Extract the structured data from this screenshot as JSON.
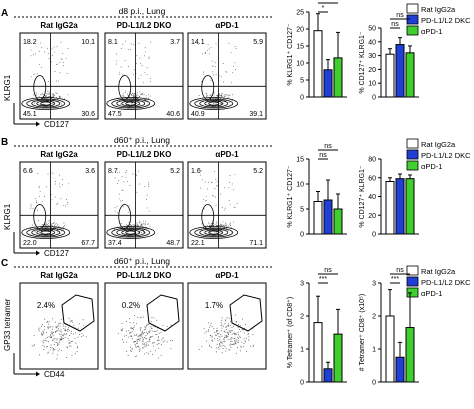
{
  "colors": {
    "rat_igg2a": "#ffffff",
    "pd_l1_l2_dko": "#1f3fd6",
    "apd1": "#3fcf2f",
    "outline": "#000000",
    "contour": "#000000",
    "dots": "#555555"
  },
  "panels": [
    {
      "letter": "A",
      "title": "d8 p.i., Lung",
      "x_label": "CD127",
      "y_label": "KLRG1",
      "plot_type": "quadrant",
      "facs": [
        {
          "name": "Rat IgG2a",
          "tl": "18.2",
          "tr": "10.1",
          "bl": "45.1",
          "br": "30.6"
        },
        {
          "name": "PD-L1/L2 DKO",
          "tl": "8.1",
          "tr": "3.7",
          "bl": "47.5",
          "br": "40.6"
        },
        {
          "name": "αPD-1",
          "tl": "14.1",
          "tr": "5.9",
          "bl": "40.9",
          "br": "39.1"
        }
      ]
    },
    {
      "letter": "B",
      "title": "d60⁺ p.i., Lung",
      "x_label": "CD127",
      "y_label": "KLRG1",
      "plot_type": "quadrant",
      "facs": [
        {
          "name": "Rat IgG2a",
          "tl": "6.6",
          "tr": "3.6",
          "bl": "22.0",
          "br": "67.7"
        },
        {
          "name": "PD-L1/L2 DKO",
          "tl": "8.7",
          "tr": "5.2",
          "bl": "37.4",
          "br": "48.7"
        },
        {
          "name": "αPD-1",
          "tl": "1.6",
          "tr": "5.2",
          "bl": "22.1",
          "br": "71.1"
        }
      ]
    },
    {
      "letter": "C",
      "title": "d60⁺ p.i., Lung",
      "x_label": "CD44",
      "y_label": "GP33 tetramer",
      "plot_type": "gate",
      "facs": [
        {
          "name": "Rat IgG2a",
          "gate": "2.4%"
        },
        {
          "name": "PD-L1/L2 DKO",
          "gate": "0.2%"
        },
        {
          "name": "αPD-1",
          "gate": "1.7%"
        }
      ]
    }
  ],
  "legend": [
    "Rat IgG2a",
    "PD-L1/L2 DKC",
    "αPD-1"
  ],
  "chart_data": [
    {
      "type": "bar",
      "panel": "A",
      "ylabel": "% KLRG1⁺ CD127⁻",
      "ylim": [
        0,
        25
      ],
      "yticks": [
        "0",
        "5",
        "10",
        "15",
        "20",
        "25"
      ],
      "categories": [
        "Rat IgG2a",
        "PD-L1/L2 DKC",
        "αPD-1"
      ],
      "values": [
        19.5,
        8.0,
        11.5
      ],
      "errors": [
        5.0,
        3.0,
        7.5
      ],
      "significance": [
        {
          "from": 0,
          "to": 1,
          "label": "*"
        },
        {
          "from": 0,
          "to": 2,
          "label": "*"
        }
      ]
    },
    {
      "type": "bar",
      "panel": "A",
      "ylabel": "% CD127⁺ KLRG1⁻",
      "ylim": [
        0,
        50
      ],
      "yticks": [
        "0",
        "10",
        "20",
        "30",
        "40",
        "50"
      ],
      "categories": [
        "Rat IgG2a",
        "PD-L1/L2 DKC",
        "αPD-1"
      ],
      "values": [
        31,
        38,
        32
      ],
      "errors": [
        4.0,
        5.0,
        5.0
      ],
      "significance": [
        {
          "from": 0,
          "to": 1,
          "label": "ns"
        },
        {
          "from": 0,
          "to": 2,
          "label": "ns"
        }
      ]
    },
    {
      "type": "bar",
      "panel": "B",
      "ylabel": "% KLRG1⁺ CD127⁻",
      "ylim": [
        0,
        15
      ],
      "yticks": [
        "0",
        "5",
        "10",
        "15"
      ],
      "categories": [
        "Rat IgG2a",
        "PD-L1/L2 DKC",
        "αPD-1"
      ],
      "values": [
        6.5,
        6.8,
        5.0
      ],
      "errors": [
        2.0,
        4.0,
        3.0
      ],
      "significance": [
        {
          "from": 0,
          "to": 1,
          "label": "ns"
        },
        {
          "from": 0,
          "to": 2,
          "label": "ns"
        }
      ]
    },
    {
      "type": "bar",
      "panel": "B",
      "ylabel": "% CD127⁺ KLRG1⁻",
      "ylim": [
        0,
        80
      ],
      "yticks": [
        "0",
        "20",
        "40",
        "60",
        "80"
      ],
      "categories": [
        "Rat IgG2a",
        "PD-L1/L2 DKC",
        "αPD-1"
      ],
      "values": [
        56,
        59,
        59
      ],
      "errors": [
        4.0,
        5.0,
        4.0
      ],
      "significance": []
    },
    {
      "type": "bar",
      "panel": "C",
      "ylabel": "% Tetramer⁺ (of CD8⁺)",
      "ylim": [
        0,
        3
      ],
      "yticks": [
        "0",
        "1",
        "2",
        "3"
      ],
      "categories": [
        "Rat IgG2a",
        "PD-L1/L2 DKC",
        "αPD-1"
      ],
      "values": [
        1.8,
        0.4,
        1.45
      ],
      "errors": [
        0.8,
        0.2,
        0.75
      ],
      "significance": [
        {
          "from": 0,
          "to": 1,
          "label": "***"
        },
        {
          "from": 0,
          "to": 2,
          "label": "ns"
        }
      ]
    },
    {
      "type": "bar",
      "panel": "C",
      "ylabel": "# Tetramer⁺ CD8⁺ (x10⁵)",
      "ylim": [
        0,
        3
      ],
      "yticks": [
        "0",
        "1",
        "2",
        "3"
      ],
      "categories": [
        "Rat IgG2a",
        "PD-L1/L2 DKC",
        "αPD-1"
      ],
      "values": [
        2.0,
        0.75,
        1.65
      ],
      "errors": [
        0.8,
        0.45,
        1.05
      ],
      "significance": [
        {
          "from": 0,
          "to": 1,
          "label": "***"
        },
        {
          "from": 0,
          "to": 2,
          "label": "ns"
        }
      ]
    }
  ]
}
